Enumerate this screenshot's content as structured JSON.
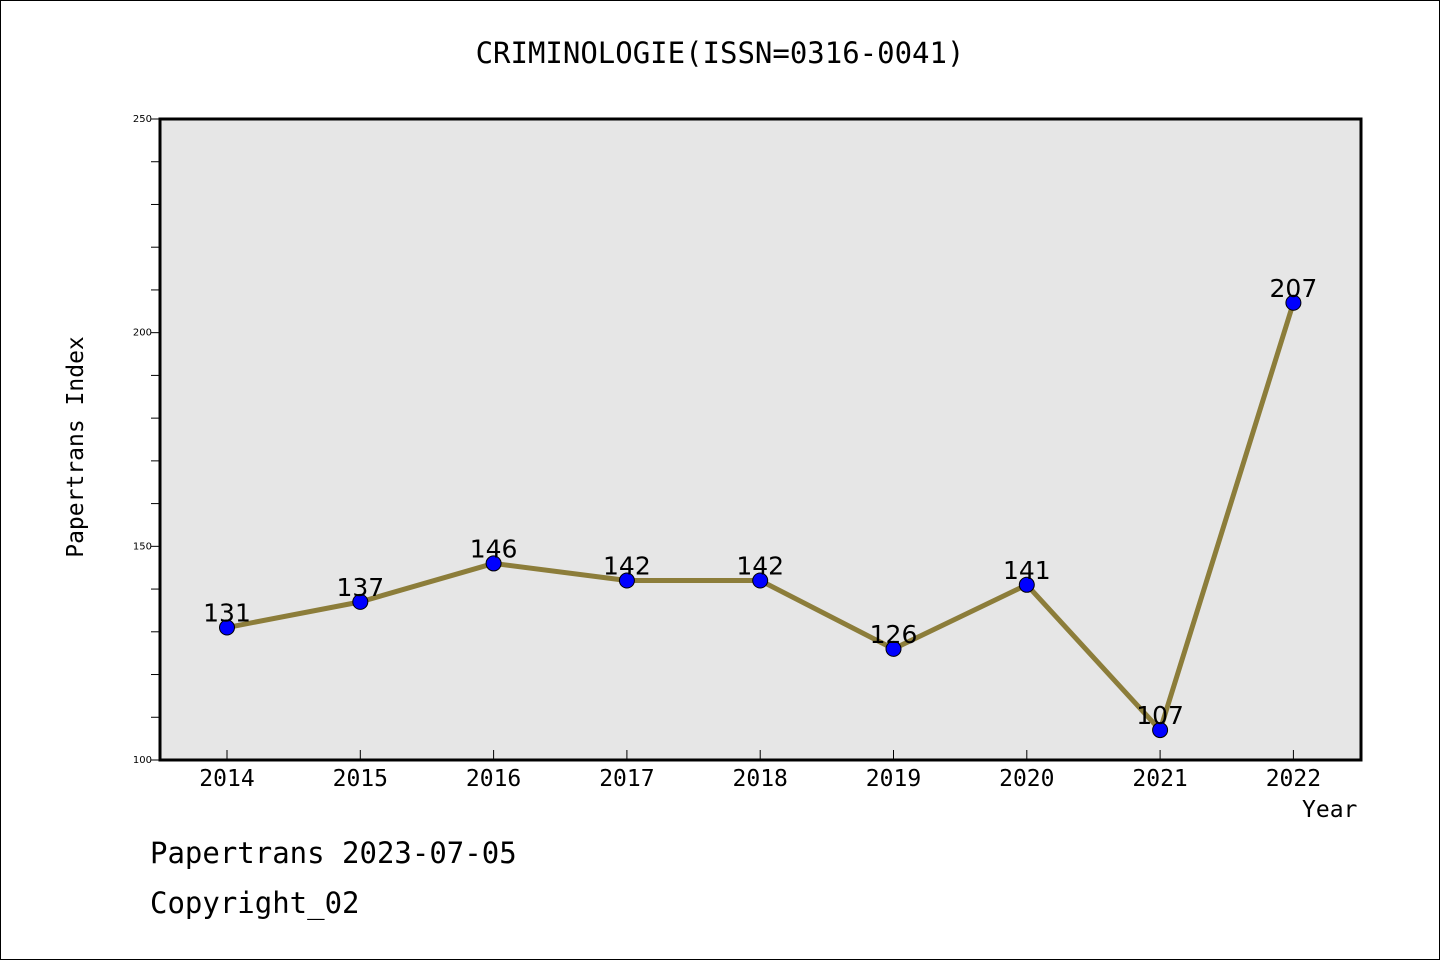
{
  "chart_data": {
    "type": "line",
    "title": "CRIMINOLOGIE(ISSN=0316-0041)",
    "xlabel": "Year",
    "ylabel": "Papertrans Index",
    "categories": [
      "2014",
      "2015",
      "2016",
      "2017",
      "2018",
      "2019",
      "2020",
      "2021",
      "2022"
    ],
    "series": [
      {
        "values": [
          131,
          137,
          146,
          142,
          142,
          126,
          141,
          107,
          207
        ]
      }
    ],
    "ylim": [
      100,
      250
    ],
    "yticks": [
      "100",
      "150",
      "200",
      "250"
    ],
    "grid": false,
    "line_color": "#8c7d3a",
    "marker_color": "#0000ff",
    "plot_background": "#e6e6e6"
  },
  "footer": {
    "date_text": "Papertrans 2023-07-05",
    "copyright_text": "Copyright_02"
  }
}
